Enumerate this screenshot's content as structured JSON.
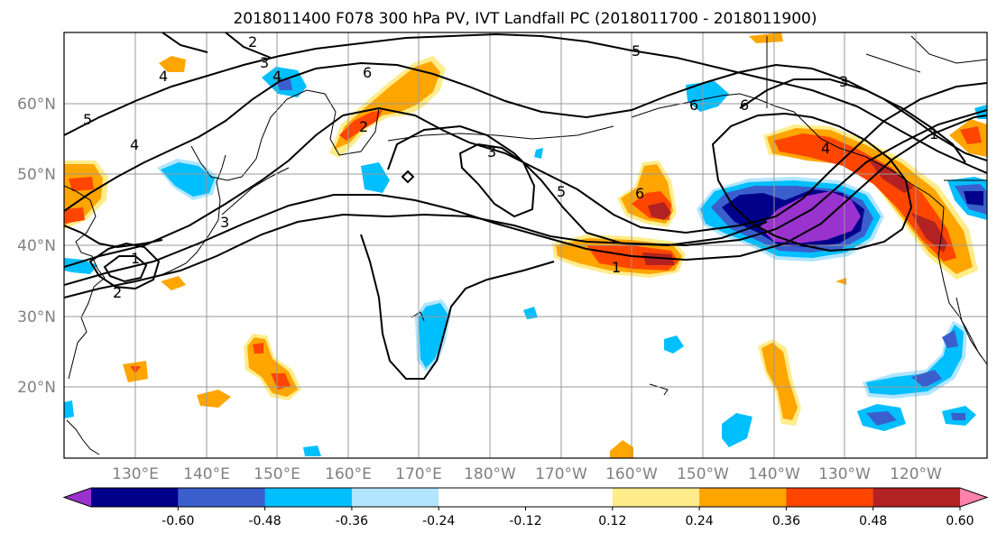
{
  "figure": {
    "title": "2018011400 F078 300 hPa PV, IVT Landfall PC (2018011700 - 2018011900)"
  },
  "axes": {
    "lat_ticks": [
      "60°N",
      "50°N",
      "40°N",
      "30°N",
      "20°N"
    ],
    "lon_ticks": [
      "130°E",
      "140°E",
      "150°E",
      "160°E",
      "170°E",
      "180°W",
      "170°W",
      "160°W",
      "150°W",
      "140°W",
      "130°W",
      "120°W"
    ]
  },
  "colorbar": {
    "colors": [
      "#9a32cd",
      "#00008b",
      "#3a5fcd",
      "#00bfff",
      "#b2e5ff",
      "#ffffff",
      "#ffffff",
      "#ffec8b",
      "#ffa500",
      "#ff4500",
      "#b22222",
      "#ff82ab"
    ],
    "tick_labels": [
      "-0.60",
      "-0.48",
      "-0.36",
      "-0.24",
      "-0.12",
      "0.12",
      "0.24",
      "0.36",
      "0.48",
      "0.60"
    ]
  },
  "contour_labels": [
    "2",
    "3",
    "4",
    "5",
    "4",
    "3",
    "2",
    "1",
    "6",
    "5",
    "3",
    "2",
    "4",
    "5",
    "6",
    "6",
    "3",
    "4",
    "1",
    "6",
    "1"
  ]
}
